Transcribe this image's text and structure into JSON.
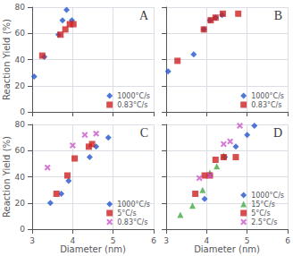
{
  "chart_data": [
    {
      "type": "scatter",
      "title": "A",
      "ylabel": "Reaction Yield (%)",
      "series": [
        {
          "name": "1000°C/s",
          "color": "#2255cc",
          "marker": "diamond",
          "x": [
            3.05,
            3.3,
            3.65,
            3.75,
            3.85,
            3.98
          ],
          "values": [
            27,
            42,
            59,
            70,
            78,
            70
          ]
        },
        {
          "name": "0.83°C/s",
          "color": "#cc2222",
          "marker": "square",
          "x": [
            3.25,
            3.7,
            3.82,
            3.93,
            4.02
          ],
          "values": [
            43,
            59,
            63,
            67,
            67
          ]
        }
      ],
      "xlim": [
        3,
        6
      ],
      "ylim": [
        0,
        80
      ],
      "xticks": [
        3,
        4,
        5,
        6
      ],
      "yticks": [
        0,
        20,
        40,
        60,
        80
      ],
      "grid": true,
      "legend": "lower right",
      "tick_labels": "y"
    },
    {
      "type": "scatter",
      "title": "B",
      "series": [
        {
          "name": "1000°C/s",
          "color": "#2255cc",
          "marker": "diamond",
          "x": [
            3.05,
            3.68,
            3.93,
            4.08,
            4.22,
            4.38
          ],
          "values": [
            31,
            44,
            63,
            70,
            72,
            74
          ]
        },
        {
          "name": "0.83°C/s",
          "color": "#cc2222",
          "marker": "square",
          "x": [
            3.28,
            3.93,
            4.1,
            4.22,
            4.4,
            4.78
          ],
          "values": [
            39,
            63,
            70,
            72,
            75,
            75
          ]
        }
      ],
      "xlim": [
        3,
        6
      ],
      "ylim": [
        0,
        80
      ],
      "xticks": [
        3,
        4,
        5,
        6
      ],
      "yticks": [
        0,
        20,
        40,
        60,
        80
      ],
      "grid": true,
      "legend": "lower right",
      "tick_labels": false
    },
    {
      "type": "scatter",
      "title": "C",
      "xlabel": "Diameter (nm)",
      "ylabel": "Reaction Yield (%)",
      "series": [
        {
          "name": "1000°C/s",
          "color": "#2255cc",
          "marker": "diamond",
          "x": [
            3.45,
            3.72,
            3.9,
            4.42,
            4.58,
            4.88
          ],
          "values": [
            20,
            27,
            37,
            55,
            63,
            70
          ]
        },
        {
          "name": "5°C/s",
          "color": "#cc2222",
          "marker": "square",
          "x": [
            3.6,
            3.87,
            4.05,
            4.4,
            4.48
          ],
          "values": [
            27,
            41,
            54,
            63,
            65
          ]
        },
        {
          "name": "0.83°C/s",
          "color": "#cc55cc",
          "marker": "x",
          "x": [
            3.38,
            4.0,
            4.3,
            4.58
          ],
          "values": [
            47,
            64,
            72,
            73
          ]
        }
      ],
      "xlim": [
        3,
        6
      ],
      "ylim": [
        0,
        80
      ],
      "xticks": [
        3,
        4,
        5,
        6
      ],
      "yticks": [
        0,
        20,
        40,
        60,
        80
      ],
      "grid": true,
      "legend": "lower right"
    },
    {
      "type": "scatter",
      "title": "D",
      "xlabel": "Diameter (nm)",
      "series": [
        {
          "name": "1000°C/s",
          "color": "#2255cc",
          "marker": "diamond",
          "x": [
            3.95,
            4.45,
            4.72,
            5.0,
            5.18
          ],
          "values": [
            23,
            55,
            63,
            72,
            79
          ]
        },
        {
          "name": "15°C/s",
          "color": "#44aa44",
          "marker": "triangle",
          "x": [
            3.35,
            3.65,
            3.9,
            4.08,
            4.25,
            4.42
          ],
          "values": [
            11,
            18,
            30,
            43,
            48,
            56
          ]
        },
        {
          "name": "5°C/s",
          "color": "#cc2222",
          "marker": "square",
          "x": [
            3.72,
            3.95,
            4.08,
            4.22,
            4.42,
            4.72
          ],
          "values": [
            27,
            41,
            41,
            53,
            55,
            55
          ]
        },
        {
          "name": "2.5°C/s",
          "color": "#cc55cc",
          "marker": "x",
          "x": [
            3.82,
            4.08,
            4.42,
            4.58,
            4.82
          ],
          "values": [
            39,
            41,
            65,
            67,
            79
          ]
        }
      ],
      "xlim": [
        3,
        6
      ],
      "ylim": [
        0,
        80
      ],
      "xticks": [
        3,
        4,
        5,
        6
      ],
      "yticks": [
        0,
        20,
        40,
        60,
        80
      ],
      "grid": true,
      "legend": "lower right",
      "tick_labels": "x"
    }
  ]
}
